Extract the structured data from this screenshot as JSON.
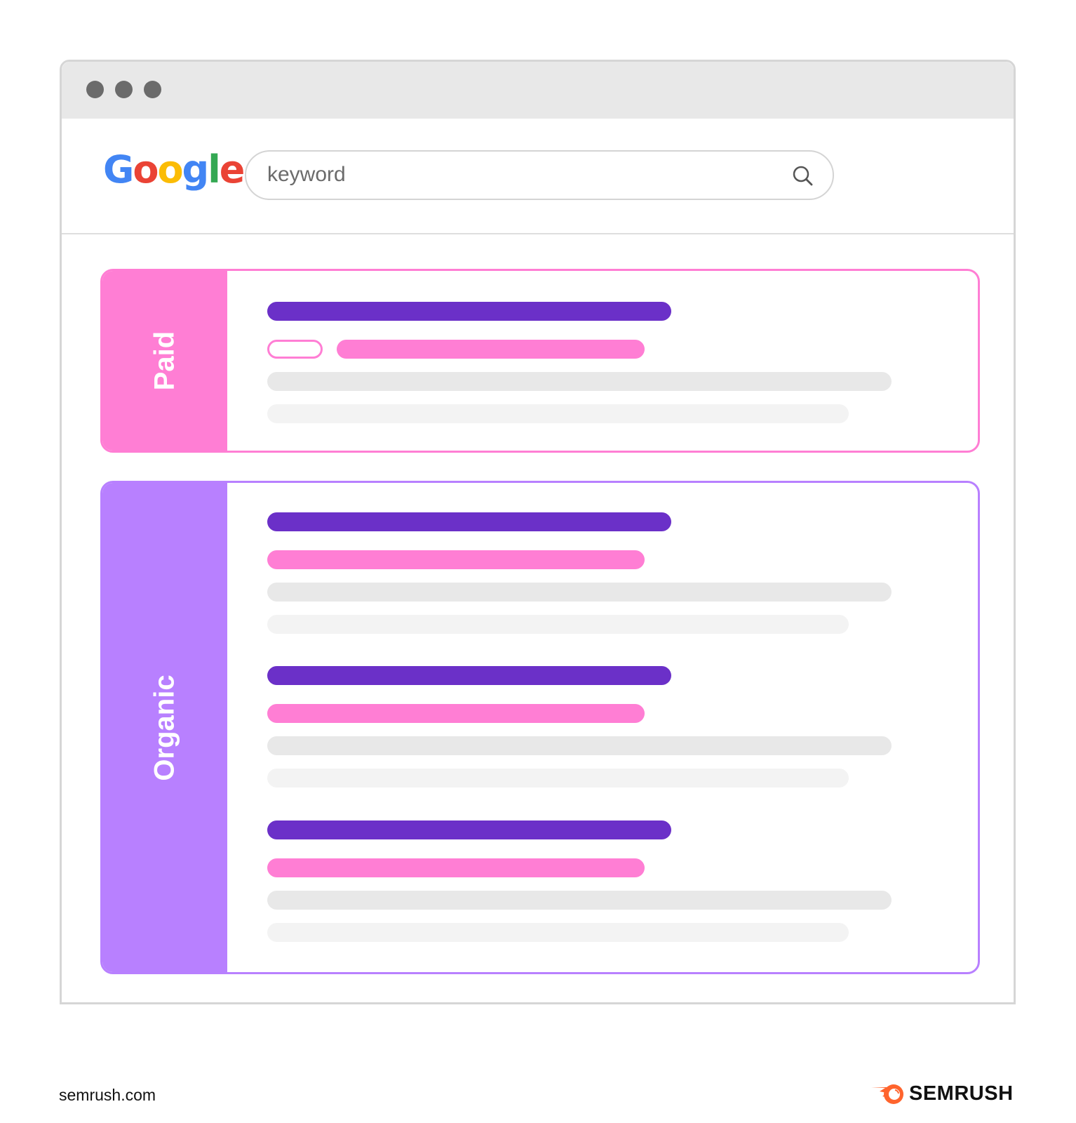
{
  "browser": {
    "window_dots": [
      "close",
      "minimize",
      "maximize"
    ],
    "logo_text": "Google",
    "logo_letter_colors": [
      "#4285F4",
      "#EA4335",
      "#FBBC05",
      "#4285F4",
      "#34A853",
      "#EA4335"
    ],
    "search": {
      "value": "keyword",
      "icon": "search-icon"
    }
  },
  "results": {
    "paid": {
      "label": "Paid",
      "color": "#FF7ED4",
      "count": 1
    },
    "organic": {
      "label": "Organic",
      "color": "#B880FF",
      "count": 3
    }
  },
  "colors": {
    "title_bar": "#6B30C8",
    "url_bar": "#FF7ED4",
    "text_line": "#E8E8E8",
    "text_line_light": "#F3F3F3"
  },
  "footer": {
    "url": "semrush.com",
    "brand": "SEMRUSH",
    "brand_color": "#FF642D"
  }
}
